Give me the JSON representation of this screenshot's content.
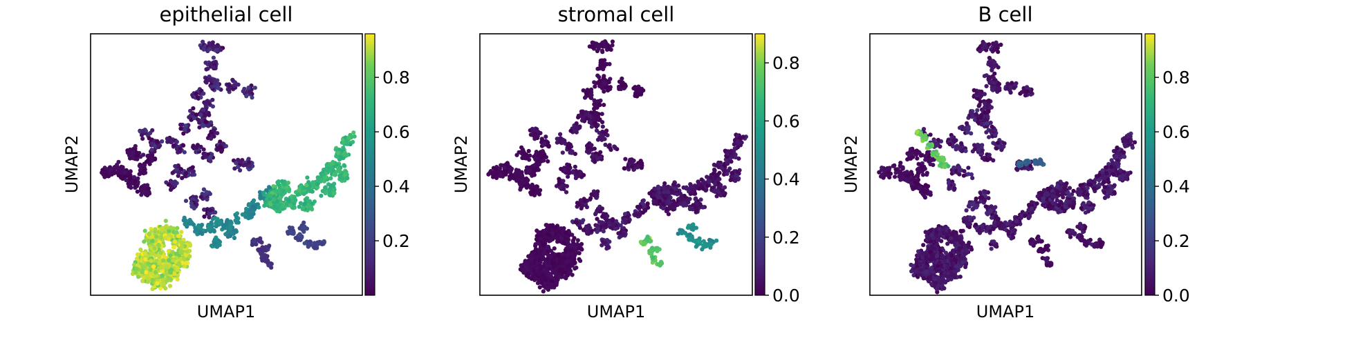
{
  "chart_data": [
    {
      "type": "scatter",
      "title": "epithelial cell",
      "xlabel": "UMAP1",
      "ylabel": "UMAP2",
      "colormap": "viridis",
      "color_range": [
        0.0,
        0.96
      ],
      "colorbar_ticks": [
        "0.2",
        "0.4",
        "0.6",
        "0.8"
      ],
      "colorbar_tick_values": [
        0.2,
        0.4,
        0.6,
        0.8
      ],
      "grid": false,
      "legend": "colorbar-right",
      "region_values": {
        "upper": 0.1,
        "left": 0.03,
        "central": 0.1,
        "bridge": 0.5,
        "right_arm": 0.72,
        "bottom_blob": 0.9,
        "small_a": 0.15,
        "small_b": 0.22
      }
    },
    {
      "type": "scatter",
      "title": "stromal cell",
      "xlabel": "UMAP1",
      "ylabel": "UMAP2",
      "colormap": "viridis",
      "color_range": [
        0.0,
        0.9
      ],
      "colorbar_ticks": [
        "0.0",
        "0.2",
        "0.4",
        "0.6",
        "0.8"
      ],
      "colorbar_tick_values": [
        0.0,
        0.2,
        0.4,
        0.6,
        0.8
      ],
      "grid": false,
      "legend": "colorbar-right",
      "region_values": {
        "upper": 0.02,
        "left": 0.02,
        "central": 0.04,
        "bridge": 0.06,
        "right_arm": 0.05,
        "bottom_blob": 0.02,
        "small_a": 0.75,
        "small_b": 0.5
      }
    },
    {
      "type": "scatter",
      "title": "B cell",
      "xlabel": "UMAP1",
      "ylabel": "UMAP2",
      "colormap": "viridis",
      "color_range": [
        0.0,
        0.96
      ],
      "colorbar_ticks": [
        "0.0",
        "0.2",
        "0.4",
        "0.6",
        "0.8"
      ],
      "colorbar_tick_values": [
        0.0,
        0.2,
        0.4,
        0.6,
        0.8
      ],
      "grid": false,
      "legend": "colorbar-right",
      "region_values": {
        "upper": 0.05,
        "left": 0.03,
        "central": 0.08,
        "bridge": 0.06,
        "right_arm": 0.07,
        "bottom_blob": 0.06,
        "small_a": 0.04,
        "small_b": 0.05,
        "streak": 0.82,
        "side_spot": 0.35
      }
    }
  ]
}
